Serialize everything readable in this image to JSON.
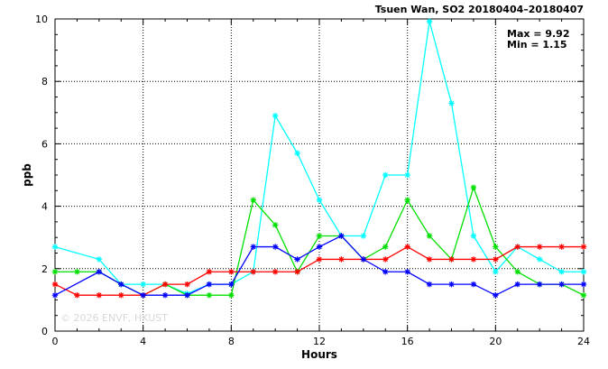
{
  "chart_data": {
    "type": "line",
    "title": "Tsuen Wan, SO2 20180404–20180407",
    "xlabel": "Hours",
    "ylabel": "ppb",
    "xlim": [
      0,
      24
    ],
    "ylim": [
      0,
      10
    ],
    "xticks": [
      0,
      4,
      8,
      12,
      16,
      20,
      24
    ],
    "xtick_labels": [
      "0",
      "4",
      "8",
      "12",
      "16",
      "20",
      "24"
    ],
    "yticks": [
      0,
      2,
      4,
      6,
      8,
      10
    ],
    "ytick_labels": [
      "0",
      "2",
      "4",
      "6",
      "8",
      "10"
    ],
    "grid": true,
    "grid_style": "dotted",
    "stats": {
      "max": "Max = 9.92",
      "min": "Min = 1.15"
    },
    "watermark": "© 2026  ENVF, HKUST",
    "series": [
      {
        "color": "#00ffff",
        "x": [
          0,
          2,
          3,
          4,
          5,
          6,
          7,
          8,
          9,
          10,
          11,
          12,
          13,
          14,
          15,
          16,
          17,
          18,
          19,
          20,
          21,
          22,
          23,
          24
        ],
        "values": [
          2.7,
          2.3,
          1.5,
          1.5,
          1.5,
          1.2,
          1.5,
          1.5,
          1.9,
          6.9,
          5.7,
          4.2,
          3.05,
          3.05,
          5.0,
          5.0,
          9.92,
          7.3,
          3.05,
          1.9,
          2.7,
          2.3,
          1.9,
          1.9
        ]
      },
      {
        "color": "#00e000",
        "x": [
          0,
          1,
          2,
          3,
          4,
          5,
          6,
          7,
          8,
          9,
          10,
          11,
          12,
          13,
          14,
          15,
          16,
          17,
          18,
          19,
          20,
          21,
          22,
          23,
          24
        ],
        "values": [
          1.9,
          1.9,
          1.9,
          1.5,
          1.15,
          1.5,
          1.15,
          1.15,
          1.15,
          4.2,
          3.4,
          1.9,
          3.05,
          3.05,
          2.3,
          2.7,
          4.2,
          3.05,
          2.3,
          4.6,
          2.7,
          1.9,
          1.5,
          1.5,
          1.15
        ]
      },
      {
        "color": "#ff0000",
        "x": [
          0,
          1,
          2,
          3,
          4,
          5,
          6,
          7,
          8,
          9,
          10,
          11,
          12,
          13,
          14,
          15,
          16,
          17,
          18,
          19,
          20,
          21,
          22,
          23,
          24
        ],
        "values": [
          1.5,
          1.15,
          1.15,
          1.15,
          1.15,
          1.5,
          1.5,
          1.9,
          1.9,
          1.9,
          1.9,
          1.9,
          2.3,
          2.3,
          2.3,
          2.3,
          2.7,
          2.3,
          2.3,
          2.3,
          2.3,
          2.7,
          2.7,
          2.7,
          2.7
        ]
      },
      {
        "color": "#0000ff",
        "x": [
          0,
          2,
          3,
          4,
          5,
          6,
          7,
          8,
          9,
          10,
          11,
          12,
          13,
          14,
          15,
          16,
          17,
          18,
          19,
          20,
          21,
          22,
          23,
          24
        ],
        "values": [
          1.15,
          1.9,
          1.5,
          1.15,
          1.15,
          1.15,
          1.5,
          1.5,
          2.7,
          2.7,
          2.3,
          2.7,
          3.05,
          2.3,
          1.9,
          1.9,
          1.5,
          1.5,
          1.5,
          1.15,
          1.5,
          1.5,
          1.5,
          1.5
        ]
      }
    ]
  }
}
